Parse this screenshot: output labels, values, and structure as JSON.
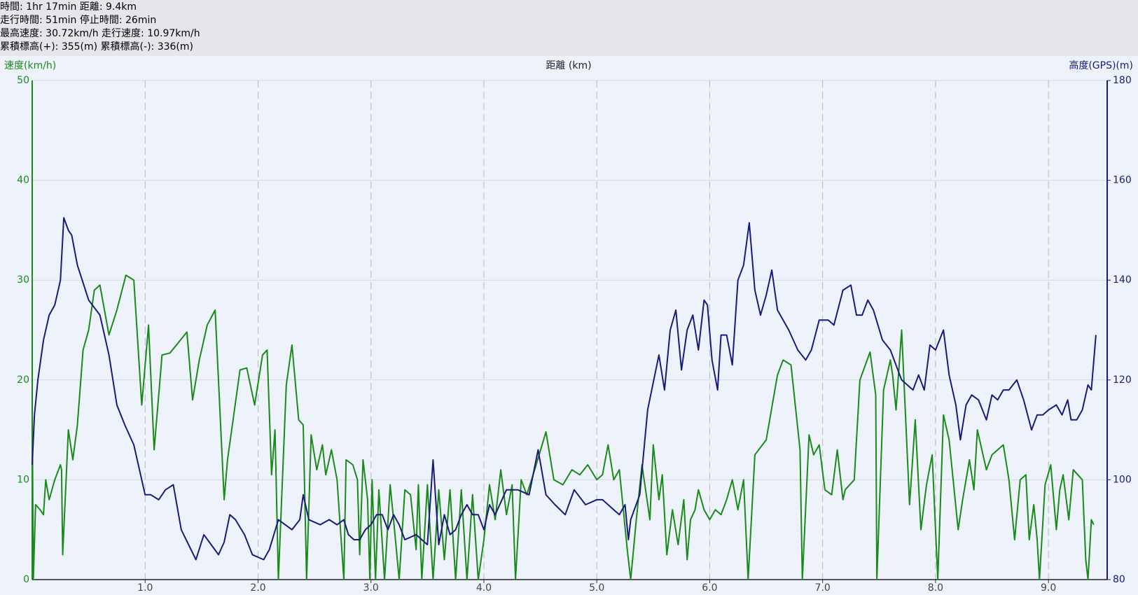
{
  "header": {
    "lines": [
      "時間: 1hr 17min 距離: 9.4km",
      "走行時間: 51min 停止時間: 26min",
      "最高速度: 30.72km/h 走行速度: 10.97km/h",
      "累積標高(+): 355(m) 累積標高(-): 336(m)"
    ]
  },
  "chart_data": {
    "type": "line",
    "x_label": "距離 (km)",
    "y_label": "速度(km/h)",
    "y2_label": "高度(GPS)(m)",
    "xlim": [
      0,
      9.52
    ],
    "xticks": [
      {
        "value": 1,
        "label": "1.0"
      },
      {
        "value": 2,
        "label": "2.0"
      },
      {
        "value": 3,
        "label": "3.0"
      },
      {
        "value": 4,
        "label": "4.0"
      },
      {
        "value": 5,
        "label": "5.0"
      },
      {
        "value": 6,
        "label": "6.0"
      },
      {
        "value": 7,
        "label": "7.0"
      },
      {
        "value": 8,
        "label": "8.0"
      },
      {
        "value": 9,
        "label": "9.0"
      }
    ],
    "ylim": [
      0,
      50
    ],
    "yticks": [
      0,
      10,
      20,
      30,
      40,
      50
    ],
    "y2lim": [
      80,
      180
    ],
    "y2ticks": [
      80,
      100,
      120,
      140,
      160,
      180
    ],
    "grid": true,
    "series": [
      {
        "color": "#1a8a1a",
        "x": [
          0,
          0.01,
          0.03,
          0.07,
          0.1,
          0.12,
          0.15,
          0.2,
          0.25,
          0.26,
          0.27,
          0.3,
          0.32,
          0.36,
          0.4,
          0.45,
          0.5,
          0.55,
          0.6,
          0.68,
          0.75,
          0.83,
          0.9,
          0.97,
          1.03,
          1.08,
          1.15,
          1.22,
          1.37,
          1.42,
          1.48,
          1.55,
          1.62,
          1.7,
          1.73,
          1.84,
          1.9,
          1.97,
          2.04,
          2.08,
          2.12,
          2.15,
          2.18,
          2.25,
          2.3,
          2.36,
          2.4,
          2.43,
          2.47,
          2.52,
          2.57,
          2.6,
          2.65,
          2.7,
          2.76,
          2.78,
          2.84,
          2.88,
          2.9,
          2.93,
          2.97,
          2.99,
          3.01,
          3.04,
          3.07,
          3.12,
          3.17,
          3.2,
          3.25,
          3.3,
          3.35,
          3.4,
          3.42,
          3.45,
          3.5,
          3.55,
          3.6,
          3.65,
          3.7,
          3.75,
          3.8,
          3.85,
          3.9,
          3.95,
          4,
          4.05,
          4.1,
          4.15,
          4.2,
          4.25,
          4.28,
          4.33,
          4.38,
          4.45,
          4.55,
          4.62,
          4.7,
          4.78,
          4.85,
          4.92,
          5,
          5.05,
          5.1,
          5.15,
          5.2,
          5.27,
          5.3,
          5.35,
          5.4,
          5.47,
          5.5,
          5.55,
          5.58,
          5.62,
          5.67,
          5.72,
          5.77,
          5.8,
          5.83,
          5.87,
          5.9,
          5.95,
          6,
          6.05,
          6.1,
          6.15,
          6.2,
          6.25,
          6.3,
          6.34,
          6.4,
          6.5,
          6.6,
          6.65,
          6.72,
          6.8,
          6.82,
          6.88,
          6.92,
          6.97,
          7.02,
          7.08,
          7.13,
          7.18,
          7.2,
          7.28,
          7.33,
          7.42,
          7.47,
          7.48,
          7.54,
          7.6,
          7.62,
          7.65,
          7.7,
          7.77,
          7.82,
          7.87,
          7.92,
          7.97,
          8.02,
          8.07,
          8.12,
          8.2,
          8.24,
          8.3,
          8.34,
          8.37,
          8.45,
          8.5,
          8.6,
          8.65,
          8.7,
          8.75,
          8.8,
          8.83,
          8.87,
          8.9,
          8.92,
          8.97,
          9.02,
          9.07,
          9.1,
          9.13,
          9.18,
          9.22,
          9.3,
          9.33,
          9.35,
          9.38,
          9.4
        ],
        "values": [
          17,
          0,
          7.5,
          7,
          6.5,
          10,
          8,
          10,
          11.5,
          11,
          2.5,
          10,
          15,
          12,
          15.5,
          23,
          25,
          29,
          29.5,
          24.5,
          27,
          30.5,
          30,
          17.5,
          25.5,
          13,
          22.5,
          22.7,
          24.8,
          18,
          22,
          25.5,
          27,
          8,
          12,
          21,
          21.2,
          17.5,
          22.5,
          23,
          10.5,
          15,
          0,
          19.5,
          23.5,
          16,
          15.5,
          0,
          14.5,
          11,
          13.5,
          10.5,
          13,
          10,
          0,
          12,
          11.5,
          10,
          2.5,
          12,
          8,
          0,
          10,
          0,
          9,
          0,
          9.5,
          6,
          0,
          9,
          8.5,
          3,
          9.5,
          0,
          9.5,
          0,
          9,
          2,
          9,
          0,
          9,
          0,
          8.5,
          0,
          4,
          9.5,
          6,
          11,
          6.5,
          9.5,
          0,
          10,
          8.5,
          11,
          14.8,
          10,
          9.5,
          11,
          10.5,
          11.5,
          10,
          10.5,
          13.5,
          10,
          11,
          3,
          0,
          6,
          11.5,
          6,
          13.5,
          8,
          10.5,
          2.5,
          7,
          3.5,
          8,
          2,
          6,
          7,
          9,
          7,
          6,
          7,
          6.5,
          8,
          10,
          7,
          10,
          0,
          12.5,
          14,
          20.5,
          22,
          21.5,
          13,
          0,
          14.5,
          12.5,
          13.5,
          9,
          8.5,
          13,
          8,
          9,
          10,
          20,
          22.8,
          18.5,
          0,
          19,
          22,
          20.5,
          17,
          25,
          7.5,
          16,
          5,
          9.5,
          12.5,
          0,
          16.5,
          14,
          5,
          8,
          12,
          9,
          15,
          11,
          12.5,
          13.5,
          10,
          4,
          10,
          10.5,
          4,
          7.5,
          4,
          0,
          9.5,
          11.5,
          5,
          9,
          10.5,
          6,
          11,
          10,
          2,
          0,
          6,
          5.5
        ]
      },
      {
        "color": "#1a1a7a",
        "axis": "y2",
        "x": [
          0,
          0.02,
          0.05,
          0.1,
          0.15,
          0.2,
          0.25,
          0.28,
          0.32,
          0.35,
          0.4,
          0.5,
          0.6,
          0.68,
          0.75,
          0.82,
          0.9,
          1,
          1.05,
          1.12,
          1.18,
          1.25,
          1.32,
          1.45,
          1.52,
          1.65,
          1.7,
          1.75,
          1.8,
          1.88,
          1.95,
          2.05,
          2.1,
          2.18,
          2.3,
          2.37,
          2.4,
          2.45,
          2.55,
          2.63,
          2.7,
          2.76,
          2.8,
          2.85,
          2.9,
          2.95,
          3,
          3.05,
          3.1,
          3.15,
          3.2,
          3.25,
          3.3,
          3.4,
          3.5,
          3.55,
          3.6,
          3.65,
          3.7,
          3.75,
          3.8,
          3.85,
          3.9,
          3.95,
          4,
          4.05,
          4.1,
          4.2,
          4.3,
          4.4,
          4.48,
          4.55,
          4.63,
          4.72,
          4.8,
          4.9,
          5,
          5.05,
          5.15,
          5.2,
          5.25,
          5.28,
          5.3,
          5.38,
          5.45,
          5.55,
          5.6,
          5.65,
          5.7,
          5.75,
          5.8,
          5.85,
          5.9,
          5.95,
          5.98,
          6.02,
          6.07,
          6.1,
          6.15,
          6.2,
          6.25,
          6.3,
          6.35,
          6.4,
          6.45,
          6.5,
          6.55,
          6.6,
          6.7,
          6.78,
          6.85,
          6.9,
          6.97,
          7.05,
          7.1,
          7.18,
          7.25,
          7.3,
          7.35,
          7.4,
          7.45,
          7.53,
          7.6,
          7.7,
          7.8,
          7.85,
          7.9,
          7.95,
          8,
          8.07,
          8.12,
          8.18,
          8.22,
          8.27,
          8.32,
          8.38,
          8.45,
          8.5,
          8.55,
          8.6,
          8.65,
          8.72,
          8.78,
          8.85,
          8.9,
          8.95,
          9,
          9.07,
          9.12,
          9.17,
          9.2,
          9.25,
          9.3,
          9.35,
          9.38,
          9.42
        ],
        "values": [
          103,
          113,
          120,
          128,
          133,
          135,
          140,
          152.5,
          150,
          149,
          143,
          136,
          133,
          125,
          115,
          111,
          107,
          97,
          97,
          96,
          98,
          99,
          90,
          84,
          89,
          85,
          87.5,
          93,
          92,
          89,
          85,
          84,
          86,
          92,
          90,
          92,
          97,
          92,
          91,
          92,
          91,
          92,
          89,
          88,
          88,
          90,
          91,
          93,
          93,
          90,
          93,
          91,
          88,
          89,
          87,
          104,
          87,
          93,
          89,
          90,
          93,
          95,
          93,
          93,
          90,
          95,
          93,
          98,
          98,
          97,
          106,
          97,
          95,
          93,
          98,
          95,
          96,
          96,
          94,
          93,
          95,
          88,
          92,
          97,
          114,
          125,
          118,
          130,
          134,
          122,
          130,
          133,
          126,
          136,
          135,
          124,
          118,
          129,
          129,
          123,
          140,
          143,
          151.5,
          138,
          133,
          137,
          142,
          134,
          130,
          126,
          124,
          126,
          132,
          132,
          131,
          138,
          139,
          133,
          133,
          136,
          134,
          128,
          126,
          120,
          118,
          121,
          118,
          127,
          126,
          130,
          121,
          115,
          108,
          115,
          117,
          116,
          112,
          117,
          116,
          118,
          118,
          120,
          116,
          110,
          113,
          113,
          114,
          115,
          113,
          116,
          112,
          112,
          114,
          119,
          118,
          129
        ]
      }
    ]
  }
}
